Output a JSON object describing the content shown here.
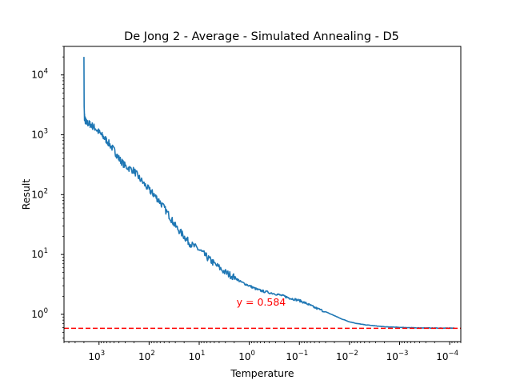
{
  "chart_data": {
    "type": "line",
    "title": "De Jong 2 - Average - Simulated Annealing - D5",
    "xlabel": "Temperature",
    "ylabel": "Result",
    "x_scale": "log",
    "x_reversed": true,
    "y_scale": "log",
    "xlim": [
      5000,
      6e-05
    ],
    "ylim": [
      0.35,
      30000
    ],
    "grid": false,
    "x_ticks": [
      {
        "value": 1000,
        "base": "10",
        "exp": "3"
      },
      {
        "value": 100,
        "base": "10",
        "exp": "2"
      },
      {
        "value": 10,
        "base": "10",
        "exp": "1"
      },
      {
        "value": 1,
        "base": "10",
        "exp": "0"
      },
      {
        "value": 0.1,
        "base": "10",
        "exp": "−1"
      },
      {
        "value": 0.01,
        "base": "10",
        "exp": "−2"
      },
      {
        "value": 0.001,
        "base": "10",
        "exp": "−3"
      },
      {
        "value": 0.0001,
        "base": "10",
        "exp": "−4"
      }
    ],
    "y_ticks": [
      {
        "value": 1,
        "base": "10",
        "exp": "0"
      },
      {
        "value": 10,
        "base": "10",
        "exp": "1"
      },
      {
        "value": 100,
        "base": "10",
        "exp": "2"
      },
      {
        "value": 1000,
        "base": "10",
        "exp": "3"
      },
      {
        "value": 10000,
        "base": "10",
        "exp": "4"
      }
    ],
    "series": [
      {
        "color": "#1f77b4",
        "x": [
          2000,
          1990,
          1980,
          1950,
          1900,
          1800,
          1500,
          1200,
          900,
          700,
          500,
          400,
          300,
          200,
          150,
          100,
          80,
          60,
          40,
          30,
          20,
          15,
          10,
          7,
          5,
          3,
          2,
          1.5,
          1,
          0.7,
          0.5,
          0.3,
          0.2,
          0.15,
          0.1,
          0.07,
          0.05,
          0.03,
          0.02,
          0.015,
          0.01,
          0.007,
          0.005,
          0.003,
          0.002,
          0.001,
          0.0007,
          0.0005,
          0.0003,
          0.0002,
          0.0001,
          8e-05
        ],
        "y": [
          20000,
          8000,
          3000,
          2000,
          1800,
          1600,
          1500,
          1300,
          1000,
          800,
          550,
          400,
          300,
          250,
          180,
          120,
          100,
          75,
          45,
          30,
          20,
          15,
          12,
          9,
          7,
          5,
          4.2,
          3.5,
          3.0,
          2.6,
          2.4,
          2.2,
          2.0,
          1.85,
          1.7,
          1.5,
          1.3,
          1.1,
          0.95,
          0.85,
          0.75,
          0.7,
          0.67,
          0.64,
          0.62,
          0.605,
          0.6,
          0.595,
          0.592,
          0.59,
          0.588,
          0.587
        ]
      }
    ],
    "hline": {
      "y": 0.584,
      "color": "#ff0000",
      "style": "dashed"
    },
    "annotation": {
      "text": "y = 0.584",
      "x": 1.8,
      "y": 1.4,
      "color": "#ff0000"
    }
  }
}
